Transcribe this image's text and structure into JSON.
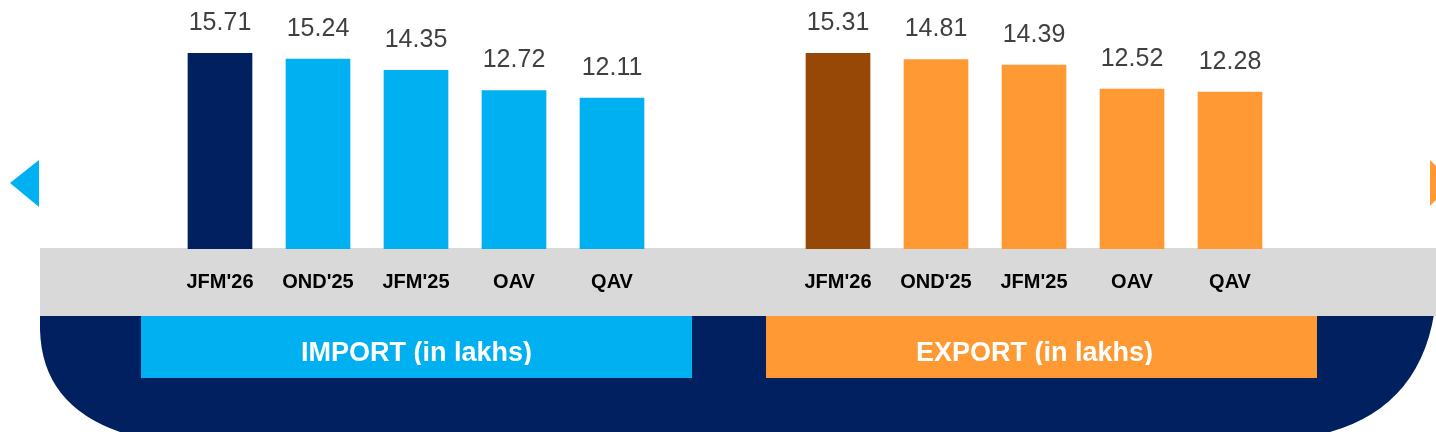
{
  "chart_data": [
    {
      "type": "bar",
      "xlabel": "IMPORT (in lakhs)",
      "categories": [
        "JFM'26",
        "OND'25",
        "JFM'25",
        "OAV",
        "QAV"
      ],
      "values": [
        15.71,
        15.24,
        14.35,
        12.72,
        12.11
      ],
      "colors": [
        "#002060",
        "#00b0f0",
        "#00b0f0",
        "#00b0f0",
        "#00b0f0"
      ],
      "data_labels": true
    },
    {
      "type": "bar",
      "xlabel": "EXPORT (in lakhs)",
      "categories": [
        "JFM'26",
        "OND'25",
        "JFM'25",
        "OAV",
        "QAV"
      ],
      "values": [
        15.31,
        14.81,
        14.39,
        12.52,
        12.28
      ],
      "colors": [
        "#974706",
        "#ff9933",
        "#ff9933",
        "#ff9933",
        "#ff9933"
      ],
      "data_labels": true
    }
  ]
}
